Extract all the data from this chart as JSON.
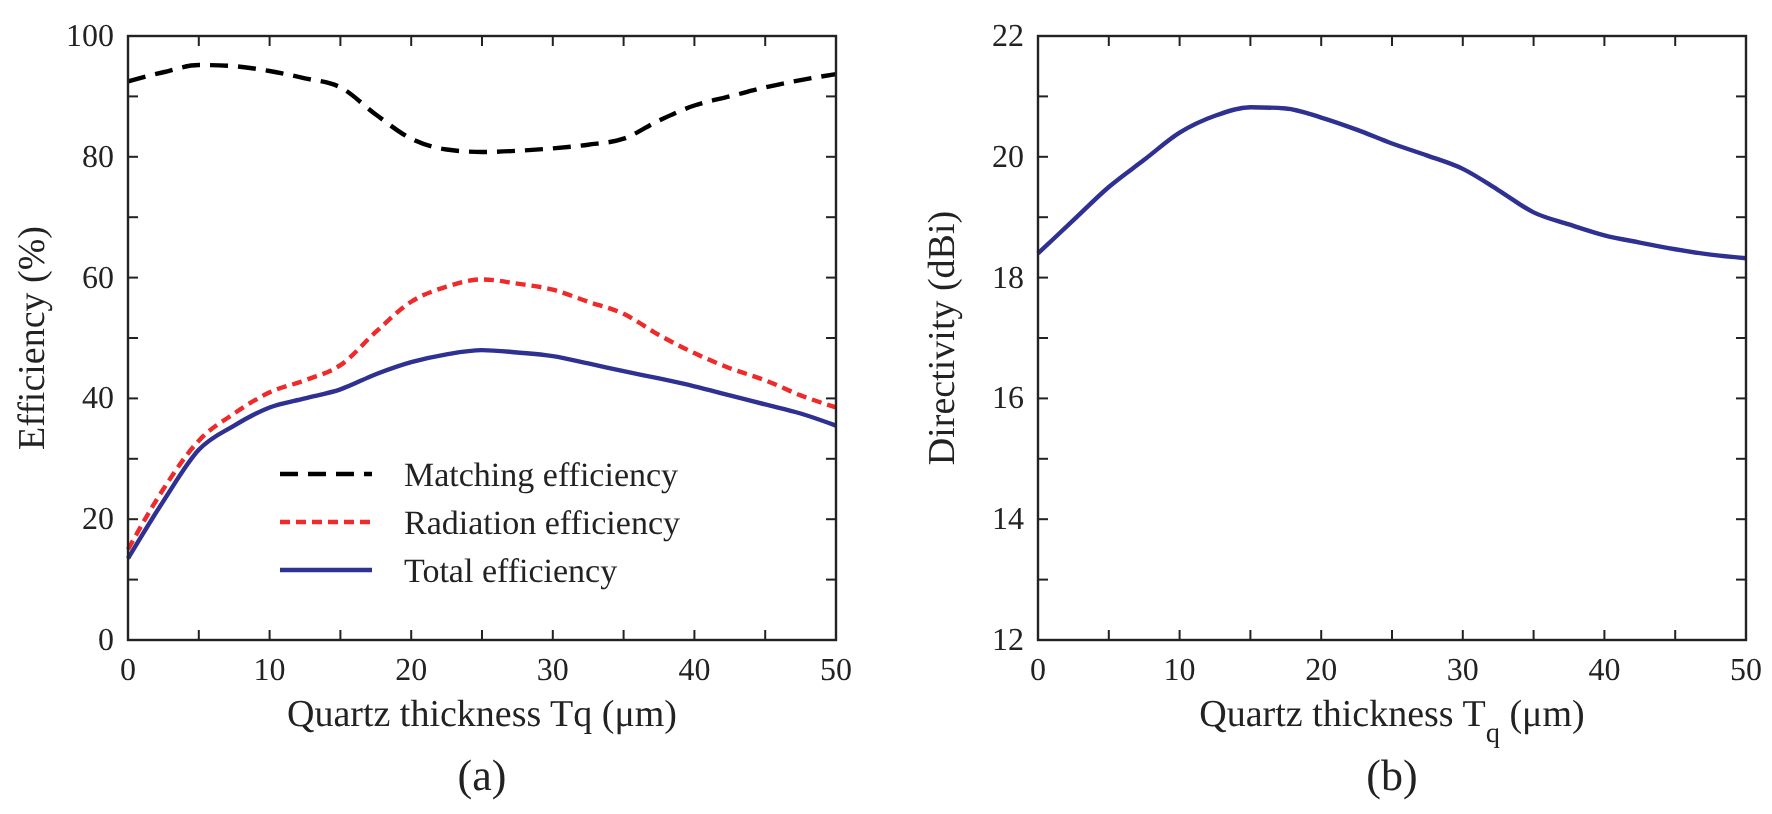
{
  "chart_data": [
    {
      "type": "line",
      "title": "(a)",
      "xlabel": "Quartz thickness Tq  (μm)",
      "ylabel": "Efficiency (%)",
      "x": [
        0,
        2.5,
        5,
        7.5,
        10,
        12.5,
        15,
        17.5,
        20,
        22.5,
        25,
        27.5,
        30,
        32.5,
        35,
        37.5,
        40,
        42.5,
        45,
        47.5,
        50
      ],
      "series": [
        {
          "name": "Matching efficiency",
          "color": "#000000",
          "line_style": "dashed",
          "values": [
            92.5,
            94,
            95.2,
            95,
            94.2,
            93,
            91.5,
            87,
            83,
            81.2,
            80.8,
            81,
            81.4,
            82,
            83,
            86,
            88.5,
            90,
            91.5,
            92.7,
            93.7
          ]
        },
        {
          "name": "Radiation efficiency",
          "color": "#ee2a2a",
          "line_style": "dotted",
          "values": [
            15,
            25,
            33,
            37.5,
            41,
            43,
            45.5,
            51,
            56,
            58.5,
            59.7,
            59,
            58,
            56,
            54,
            50.5,
            47.5,
            45,
            43,
            40.5,
            38.5
          ]
        },
        {
          "name": "Total efficiency",
          "color": "#2e3192",
          "line_style": "solid",
          "values": [
            13.5,
            23,
            31.5,
            35.5,
            38.5,
            40,
            41.5,
            44,
            46,
            47.3,
            48,
            47.6,
            47,
            45.8,
            44.5,
            43.3,
            42,
            40.5,
            39,
            37.5,
            35.5
          ]
        }
      ],
      "xlim": [
        0,
        50
      ],
      "xticks": [
        0,
        {
          "value": 5,
          "label": null
        },
        10,
        {
          "value": 15,
          "label": null
        },
        20,
        {
          "value": 25,
          "label": null
        },
        30,
        {
          "value": 35,
          "label": null
        },
        40,
        {
          "value": 45,
          "label": null
        },
        50
      ],
      "ylim": [
        0,
        100
      ],
      "yticks": [
        0,
        {
          "value": 10,
          "label": null
        },
        20,
        {
          "value": 30,
          "label": null
        },
        40,
        {
          "value": 50,
          "label": null
        },
        60,
        {
          "value": 70,
          "label": null
        },
        80,
        {
          "value": 90,
          "label": null
        },
        100
      ],
      "grid": false,
      "legend": "bottom"
    },
    {
      "type": "line",
      "title": "(b)",
      "xlabel": "Quartz thickness T$_{q}$ (μm)",
      "ylabel": "Directivity (dBi)",
      "x": [
        0,
        2.5,
        5,
        7.5,
        10,
        12.5,
        15,
        17.5,
        20,
        22.5,
        25,
        27.5,
        30,
        32.5,
        35,
        37.5,
        40,
        42.5,
        45,
        47.5,
        50
      ],
      "series": [
        {
          "color": "#2e3192",
          "values": [
            18.4,
            18.95,
            19.5,
            19.95,
            20.4,
            20.68,
            20.82,
            20.8,
            20.65,
            20.45,
            20.22,
            20.02,
            19.8,
            19.45,
            19.08,
            18.88,
            18.7,
            18.58,
            18.47,
            18.38,
            18.32
          ]
        }
      ],
      "xlim": [
        0,
        50
      ],
      "xticks": [
        0,
        {
          "value": 5,
          "label": null
        },
        10,
        {
          "value": 15,
          "label": null
        },
        20,
        {
          "value": 25,
          "label": null
        },
        30,
        {
          "value": 35,
          "label": null
        },
        40,
        {
          "value": 45,
          "label": null
        },
        50
      ],
      "ylim": [
        12,
        22
      ],
      "yticks": [
        12,
        {
          "value": 13,
          "label": null
        },
        14,
        {
          "value": 15,
          "label": null
        },
        16,
        {
          "value": 17,
          "label": null
        },
        18,
        {
          "value": 19,
          "label": null
        },
        20,
        {
          "value": 21,
          "label": null
        },
        22
      ],
      "grid": false,
      "legend": false
    }
  ]
}
